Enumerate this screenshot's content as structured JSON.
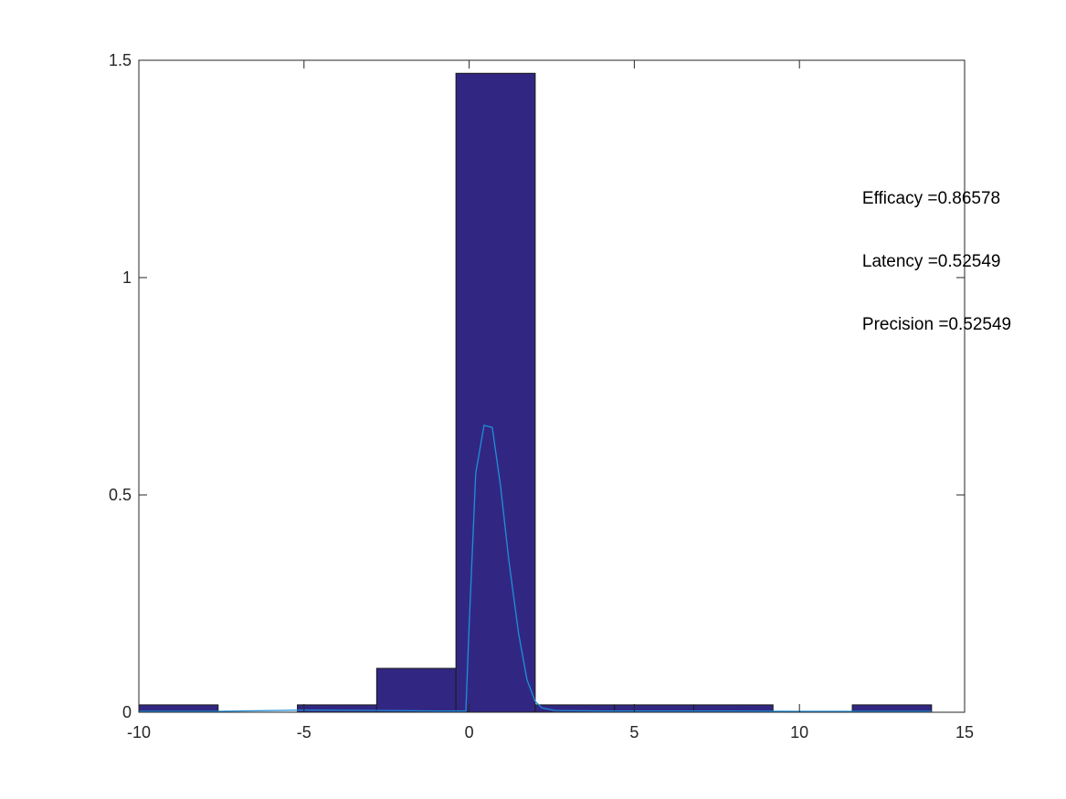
{
  "chart_data": {
    "type": "bar",
    "title": "",
    "xlabel": "",
    "ylabel": "",
    "xlim": [
      -10,
      15
    ],
    "ylim": [
      0,
      1.5
    ],
    "xticks": [
      -10,
      -5,
      0,
      5,
      10,
      15
    ],
    "xtick_labels": [
      "-10",
      "-5",
      "0",
      "5",
      "10",
      "15"
    ],
    "yticks": [
      0,
      0.5,
      1,
      1.5
    ],
    "ytick_labels": [
      "0",
      "0.5",
      "1",
      "1.5"
    ],
    "bar_color": "#312783",
    "bar_edge_color": "#1a1a1a",
    "line_color": "#1f8fd8",
    "bins": [
      {
        "x0": -10,
        "x1": -7.6,
        "value": 0.017
      },
      {
        "x0": -7.6,
        "x1": -5.2,
        "value": 0.0
      },
      {
        "x0": -5.2,
        "x1": -2.8,
        "value": 0.017
      },
      {
        "x0": -2.8,
        "x1": -0.4,
        "value": 0.101
      },
      {
        "x0": -0.4,
        "x1": 2.0,
        "value": 1.47
      },
      {
        "x0": 2.0,
        "x1": 4.4,
        "value": 0.017
      },
      {
        "x0": 4.4,
        "x1": 6.8,
        "value": 0.017
      },
      {
        "x0": 6.8,
        "x1": 9.2,
        "value": 0.017
      },
      {
        "x0": 9.2,
        "x1": 11.6,
        "value": 0.0
      },
      {
        "x0": 11.6,
        "x1": 14.0,
        "value": 0.017
      }
    ],
    "line_series": {
      "name": "density",
      "x": [
        -10,
        -7.6,
        -5,
        -2.5,
        -1.0,
        -0.1,
        0.0,
        0.2,
        0.45,
        0.7,
        0.95,
        1.2,
        1.5,
        1.75,
        2.0,
        2.2,
        2.6,
        4,
        8,
        10,
        12,
        14
      ],
      "y": [
        0.002,
        0.002,
        0.005,
        0.004,
        0.003,
        0.003,
        0.2,
        0.55,
        0.66,
        0.655,
        0.52,
        0.35,
        0.18,
        0.075,
        0.025,
        0.01,
        0.004,
        0.003,
        0.003,
        0.002,
        0.002,
        0.002
      ]
    },
    "annotations": [
      {
        "text": "Efficacy =0.86578",
        "x": 11.9,
        "y": 1.17
      },
      {
        "text": "Latency =0.52549",
        "x": 11.9,
        "y": 1.025
      },
      {
        "text": "Precision =0.52549",
        "x": 11.9,
        "y": 0.88
      }
    ]
  }
}
